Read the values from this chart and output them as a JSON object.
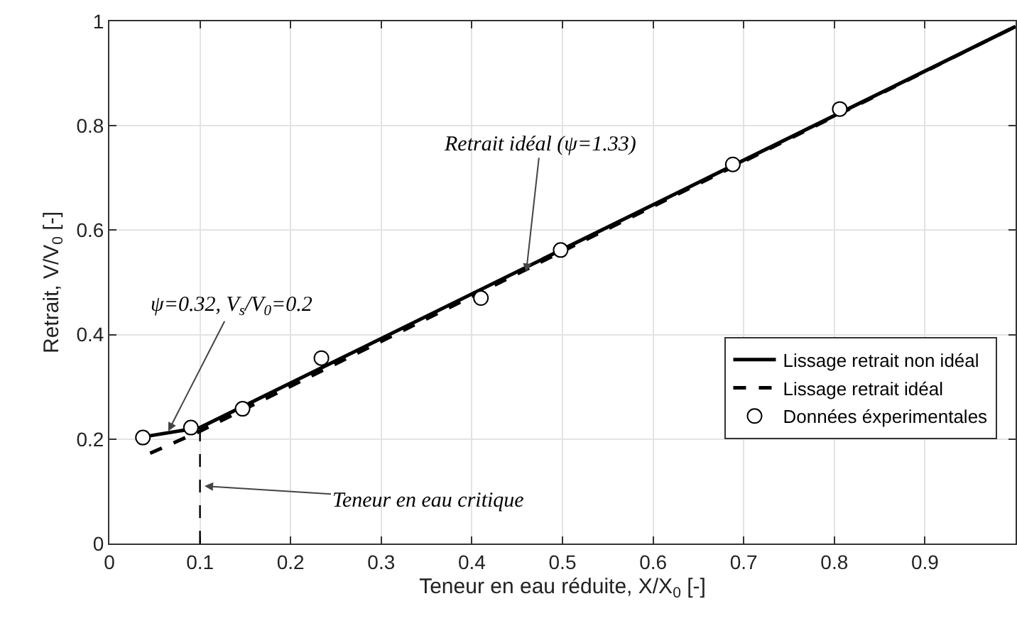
{
  "chart_data": {
    "type": "line",
    "xlabel": "Teneur en eau réduite, X/X$_{0}$ [-]",
    "ylabel": "Retrait, V/V$_{0}$ [-]",
    "xlim": [
      0,
      1
    ],
    "xticks": [
      0,
      0.1,
      0.2,
      0.3,
      0.4,
      0.5,
      0.6,
      0.7,
      0.8,
      0.9
    ],
    "ylim": [
      0,
      1
    ],
    "yticks": [
      0,
      0.2,
      0.4,
      0.6,
      0.8,
      1
    ],
    "grid": true,
    "legend": "bottom right",
    "series": [
      {
        "name": "Lissage retrait non idéal",
        "color": "#000000",
        "line_style": "solid",
        "marker": "none",
        "x": [
          0.04,
          0.1,
          1
        ],
        "values": [
          0.205,
          0.222,
          0.99
        ]
      },
      {
        "name": "Lissage retrait idéal",
        "color": "#000000",
        "line_style": "dashed",
        "marker": "none",
        "x": [
          0.045,
          0.1,
          1
        ],
        "values": [
          0.173,
          0.215,
          0.99
        ]
      },
      {
        "name": "Données éxperimentales",
        "type": "scatter",
        "color": "#000000",
        "marker": "circle",
        "x": [
          0.037,
          0.09,
          0.147,
          0.234,
          0.41,
          0.498,
          0.688,
          0.806
        ],
        "values": [
          0.203,
          0.222,
          0.258,
          0.355,
          0.47,
          0.562,
          0.726,
          0.832
        ]
      }
    ],
    "ref_lines": [
      {
        "axis": "x",
        "value": 0.1,
        "color": "#000000",
        "line_style": "dashed"
      }
    ],
    "annotations": [
      {
        "text": "Retrait idéal (ψ=1.33)",
        "x": 0.46,
        "y": 0.52
      },
      {
        "text": "ψ=0.32, V$_{s}$/V$_{0}$=0.2",
        "x": 0.065,
        "y": 0.215
      },
      {
        "text": "Teneur en eau critique",
        "x": 0.105,
        "y": 0.11
      }
    ]
  }
}
